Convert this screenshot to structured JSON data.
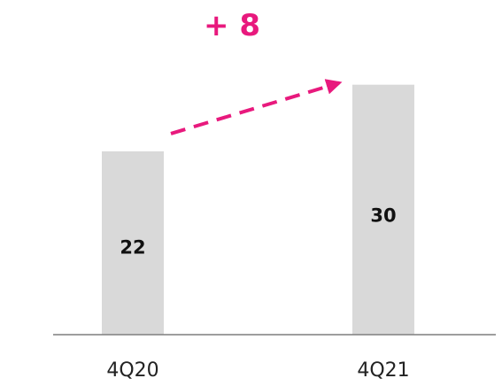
{
  "chart_data": {
    "type": "bar",
    "categories": [
      "4Q20",
      "4Q21"
    ],
    "values": [
      22,
      30
    ],
    "ylim": [
      0,
      34
    ],
    "annotation": {
      "text": "+ 8",
      "style": "dashed-arrow",
      "from_category": "4Q20",
      "to_category": "4Q21"
    },
    "grid": false,
    "legend": "none"
  },
  "colors": {
    "bar": "#d9d9d9",
    "accent": "#e8197d",
    "axis": "#7f7f7f",
    "text": "#111111"
  }
}
